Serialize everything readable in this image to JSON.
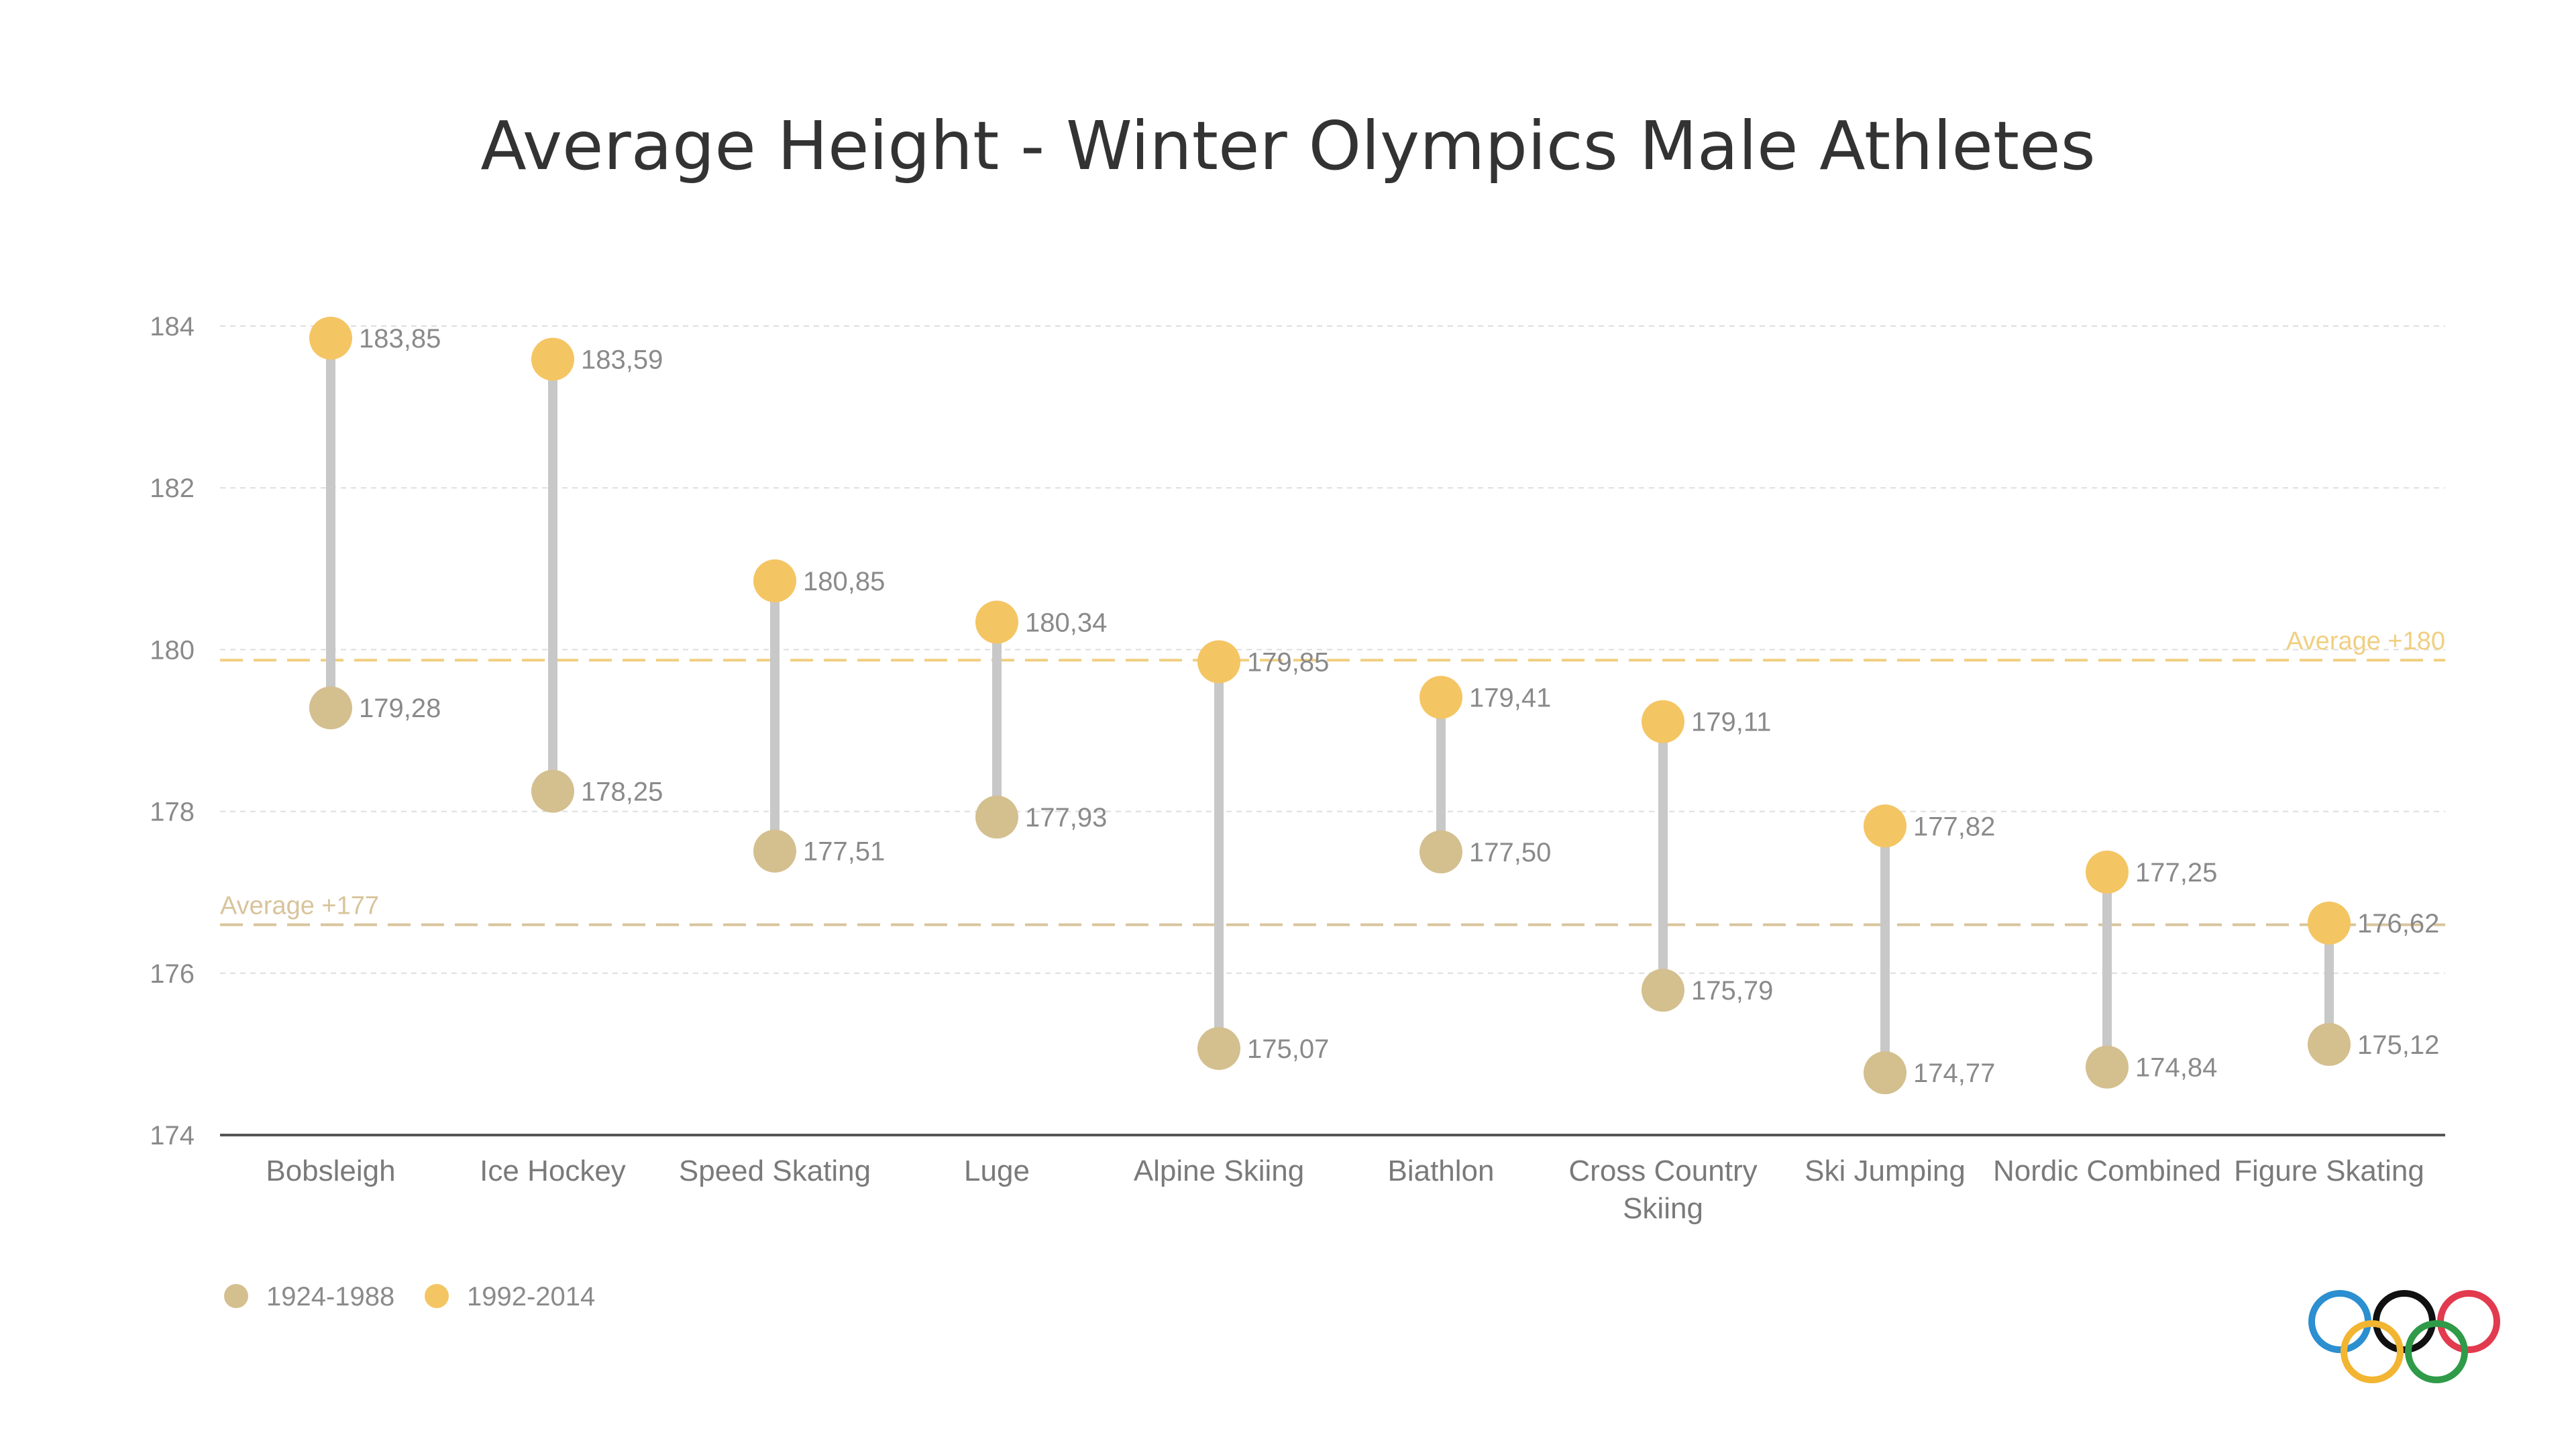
{
  "chart_data": {
    "type": "dumbbell",
    "title": "Average Height - Winter Olympics Male Athletes",
    "xlabel": "",
    "ylabel": "",
    "ylim": [
      174,
      184
    ],
    "yticks": [
      174,
      176,
      178,
      180,
      182,
      184
    ],
    "grid": true,
    "legend_position": "bottom-left",
    "categories": [
      [
        "Bobsleigh"
      ],
      [
        "Ice Hockey"
      ],
      [
        "Speed Skating"
      ],
      [
        "Luge"
      ],
      [
        "Alpine Skiing"
      ],
      [
        "Biathlon"
      ],
      [
        "Cross Country",
        "Skiing"
      ],
      [
        "Ski Jumping"
      ],
      [
        "Nordic Combined"
      ],
      [
        "Figure Skating"
      ]
    ],
    "series": [
      {
        "name": "1924-1988",
        "color": "#d4bf8f",
        "values": [
          179.28,
          178.25,
          177.51,
          177.93,
          175.07,
          177.5,
          175.79,
          174.77,
          174.84,
          175.12
        ],
        "labels": [
          "179,28",
          "178,25",
          "177,51",
          "177,93",
          "175,07",
          "177,50",
          "175,79",
          "174,77",
          "174,84",
          "175,12"
        ]
      },
      {
        "name": "1992-2014",
        "color": "#f4c563",
        "values": [
          183.85,
          183.59,
          180.85,
          180.34,
          179.85,
          179.41,
          179.11,
          177.82,
          177.25,
          176.62
        ],
        "labels": [
          "183,85",
          "183,59",
          "180,85",
          "180,34",
          "179,85",
          "179,41",
          "179,11",
          "177,82",
          "177,25",
          "176,62"
        ]
      }
    ],
    "reference_lines": [
      {
        "label": "Average +180",
        "value": 179.87,
        "color": "#f0cf80",
        "label_position": "right"
      },
      {
        "label": "Average  +177",
        "value": 176.6,
        "color": "#d8c49c",
        "label_position": "left"
      }
    ],
    "connector_color": "#c8c8c8"
  },
  "logo": {
    "name": "olympic-rings-icon",
    "colors": [
      "#2b8fd0",
      "#111111",
      "#e23a4e",
      "#f2b531",
      "#2f9a48"
    ]
  }
}
